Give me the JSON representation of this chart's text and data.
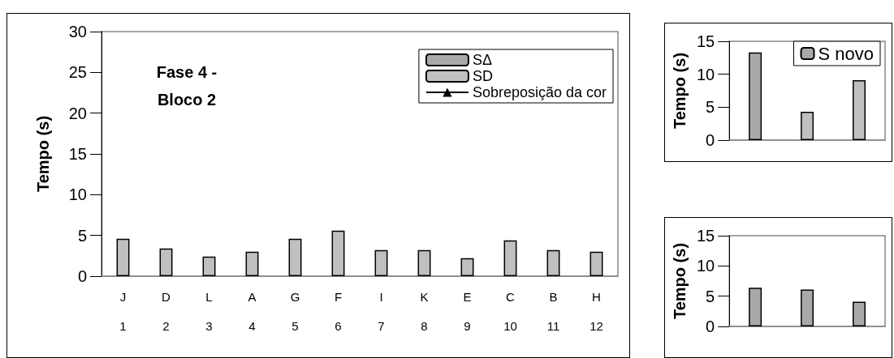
{
  "chart_data": [
    {
      "type": "bar",
      "title": "Fase 4 -\nBloco 2",
      "ylabel": "Tempo (s)",
      "categories": [
        "J\n\n1",
        "D\n\n2",
        "L\n\n3",
        "A\n\n4",
        "G\n\n5",
        "F\n\n6",
        "I\n\n7",
        "K\n\n8",
        "E\n\n9",
        "C\n\n10",
        "B\n\n11",
        "H\n\n12"
      ],
      "series": [
        {
          "name": "SΔ",
          "color": "#a9a9a9",
          "values": [
            null,
            null,
            null,
            null,
            null,
            null,
            null,
            null,
            null,
            null,
            null,
            null
          ]
        },
        {
          "name": "SD",
          "color": "#c0c0c0",
          "values": [
            4.6,
            3.4,
            2.4,
            3.0,
            4.6,
            5.6,
            3.2,
            3.2,
            2.2,
            4.4,
            3.2,
            3.0
          ]
        },
        {
          "name": "Sobreposição da cor",
          "type": "line",
          "color": "#000000",
          "marker": "triangle",
          "values": [
            null,
            null,
            null,
            null,
            null,
            null,
            null,
            null,
            null,
            null,
            null,
            null
          ]
        }
      ],
      "ylim": [
        0,
        30
      ],
      "yticks": [
        0,
        5,
        10,
        15,
        20,
        25,
        30
      ],
      "grid": false,
      "legend": "top right"
    },
    {
      "type": "bar",
      "ylabel": "Tempo (s)",
      "categories": [
        null,
        null,
        null
      ],
      "series": [
        {
          "name": "S novo",
          "color": "#a9a9a9",
          "values": [
            13.3,
            null,
            null
          ]
        },
        {
          "color": "#c0c0c0",
          "values": [
            null,
            4.3,
            9.1
          ]
        }
      ],
      "ylim": [
        0,
        15
      ],
      "yticks": [
        0,
        5,
        10,
        15
      ],
      "grid": false,
      "legend": "top right"
    },
    {
      "type": "bar",
      "ylabel": "Tempo (s)",
      "categories": [
        null,
        null,
        null
      ],
      "series": [
        {
          "color": "#a9a9a9",
          "values": [
            6.4,
            6.1,
            4.1
          ]
        }
      ],
      "ylim": [
        0,
        15
      ],
      "yticks": [
        0,
        5,
        10,
        15
      ],
      "grid": false
    }
  ]
}
